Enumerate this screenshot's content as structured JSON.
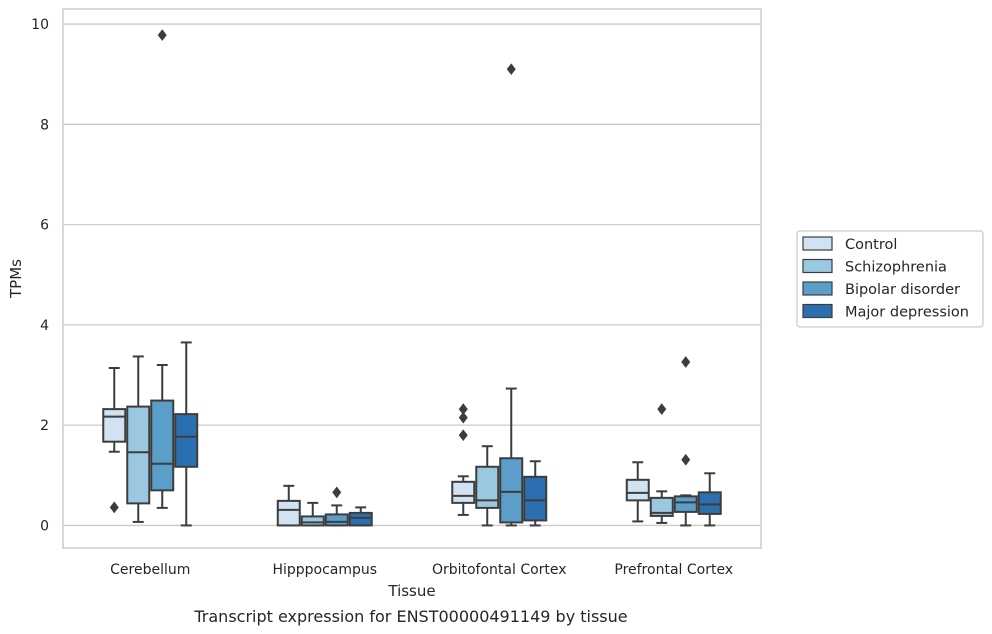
{
  "chart_data": {
    "type": "boxplot",
    "title": "",
    "caption": "Transcript expression for ENST00000491149 by tissue",
    "xlabel": "Tissue",
    "ylabel": "TPMs",
    "ylim": [
      -0.45,
      10.3
    ],
    "yticks": [
      0,
      2,
      4,
      6,
      8,
      10
    ],
    "grid": "horizontal",
    "legend_position": "right",
    "categories": [
      "Cerebellum",
      "Hipppocampus",
      "Orbitofontal Cortex",
      "Prefrontal Cortex"
    ],
    "series": [
      {
        "name": "Control",
        "color": "#d1e2f2",
        "boxes": [
          {
            "whisker_low": 1.47,
            "q1": 1.67,
            "median": 2.17,
            "q3": 2.32,
            "whisker_high": 3.14,
            "outliers": [
              0.36
            ]
          },
          {
            "whisker_low": 0.0,
            "q1": 0.0,
            "median": 0.31,
            "q3": 0.49,
            "whisker_high": 0.79,
            "outliers": []
          },
          {
            "whisker_low": 0.21,
            "q1": 0.45,
            "median": 0.59,
            "q3": 0.87,
            "whisker_high": 0.98,
            "outliers": [
              1.8,
              2.15,
              2.32
            ]
          },
          {
            "whisker_low": 0.08,
            "q1": 0.5,
            "median": 0.65,
            "q3": 0.91,
            "whisker_high": 1.26,
            "outliers": []
          }
        ]
      },
      {
        "name": "Schizophrenia",
        "color": "#9ac8e0",
        "boxes": [
          {
            "whisker_low": 0.07,
            "q1": 0.44,
            "median": 1.46,
            "q3": 2.37,
            "whisker_high": 3.37,
            "outliers": []
          },
          {
            "whisker_low": 0.0,
            "q1": 0.0,
            "median": 0.06,
            "q3": 0.18,
            "whisker_high": 0.45,
            "outliers": []
          },
          {
            "whisker_low": 0.0,
            "q1": 0.35,
            "median": 0.5,
            "q3": 1.17,
            "whisker_high": 1.58,
            "outliers": []
          },
          {
            "whisker_low": 0.05,
            "q1": 0.19,
            "median": 0.25,
            "q3": 0.55,
            "whisker_high": 0.68,
            "outliers": [
              2.32
            ]
          }
        ]
      },
      {
        "name": "Bipolar disorder",
        "color": "#5a9ec9",
        "boxes": [
          {
            "whisker_low": 0.35,
            "q1": 0.7,
            "median": 1.23,
            "q3": 2.49,
            "whisker_high": 3.2,
            "outliers": [
              9.78
            ]
          },
          {
            "whisker_low": 0.0,
            "q1": 0.0,
            "median": 0.07,
            "q3": 0.22,
            "whisker_high": 0.4,
            "outliers": [
              0.66
            ]
          },
          {
            "whisker_low": 0.0,
            "q1": 0.06,
            "median": 0.67,
            "q3": 1.34,
            "whisker_high": 2.73,
            "outliers": [
              9.1
            ]
          },
          {
            "whisker_low": 0.0,
            "q1": 0.27,
            "median": 0.46,
            "q3": 0.58,
            "whisker_high": 0.6,
            "outliers": [
              1.31,
              3.26
            ]
          }
        ]
      },
      {
        "name": "Major depression",
        "color": "#2c6fb0",
        "boxes": [
          {
            "whisker_low": 0.0,
            "q1": 1.17,
            "median": 1.77,
            "q3": 2.22,
            "whisker_high": 3.65,
            "outliers": []
          },
          {
            "whisker_low": 0.0,
            "q1": 0.0,
            "median": 0.15,
            "q3": 0.25,
            "whisker_high": 0.36,
            "outliers": []
          },
          {
            "whisker_low": 0.0,
            "q1": 0.1,
            "median": 0.5,
            "q3": 0.97,
            "whisker_high": 1.28,
            "outliers": []
          },
          {
            "whisker_low": 0.0,
            "q1": 0.23,
            "median": 0.42,
            "q3": 0.66,
            "whisker_high": 1.04,
            "outliers": []
          }
        ]
      }
    ]
  }
}
